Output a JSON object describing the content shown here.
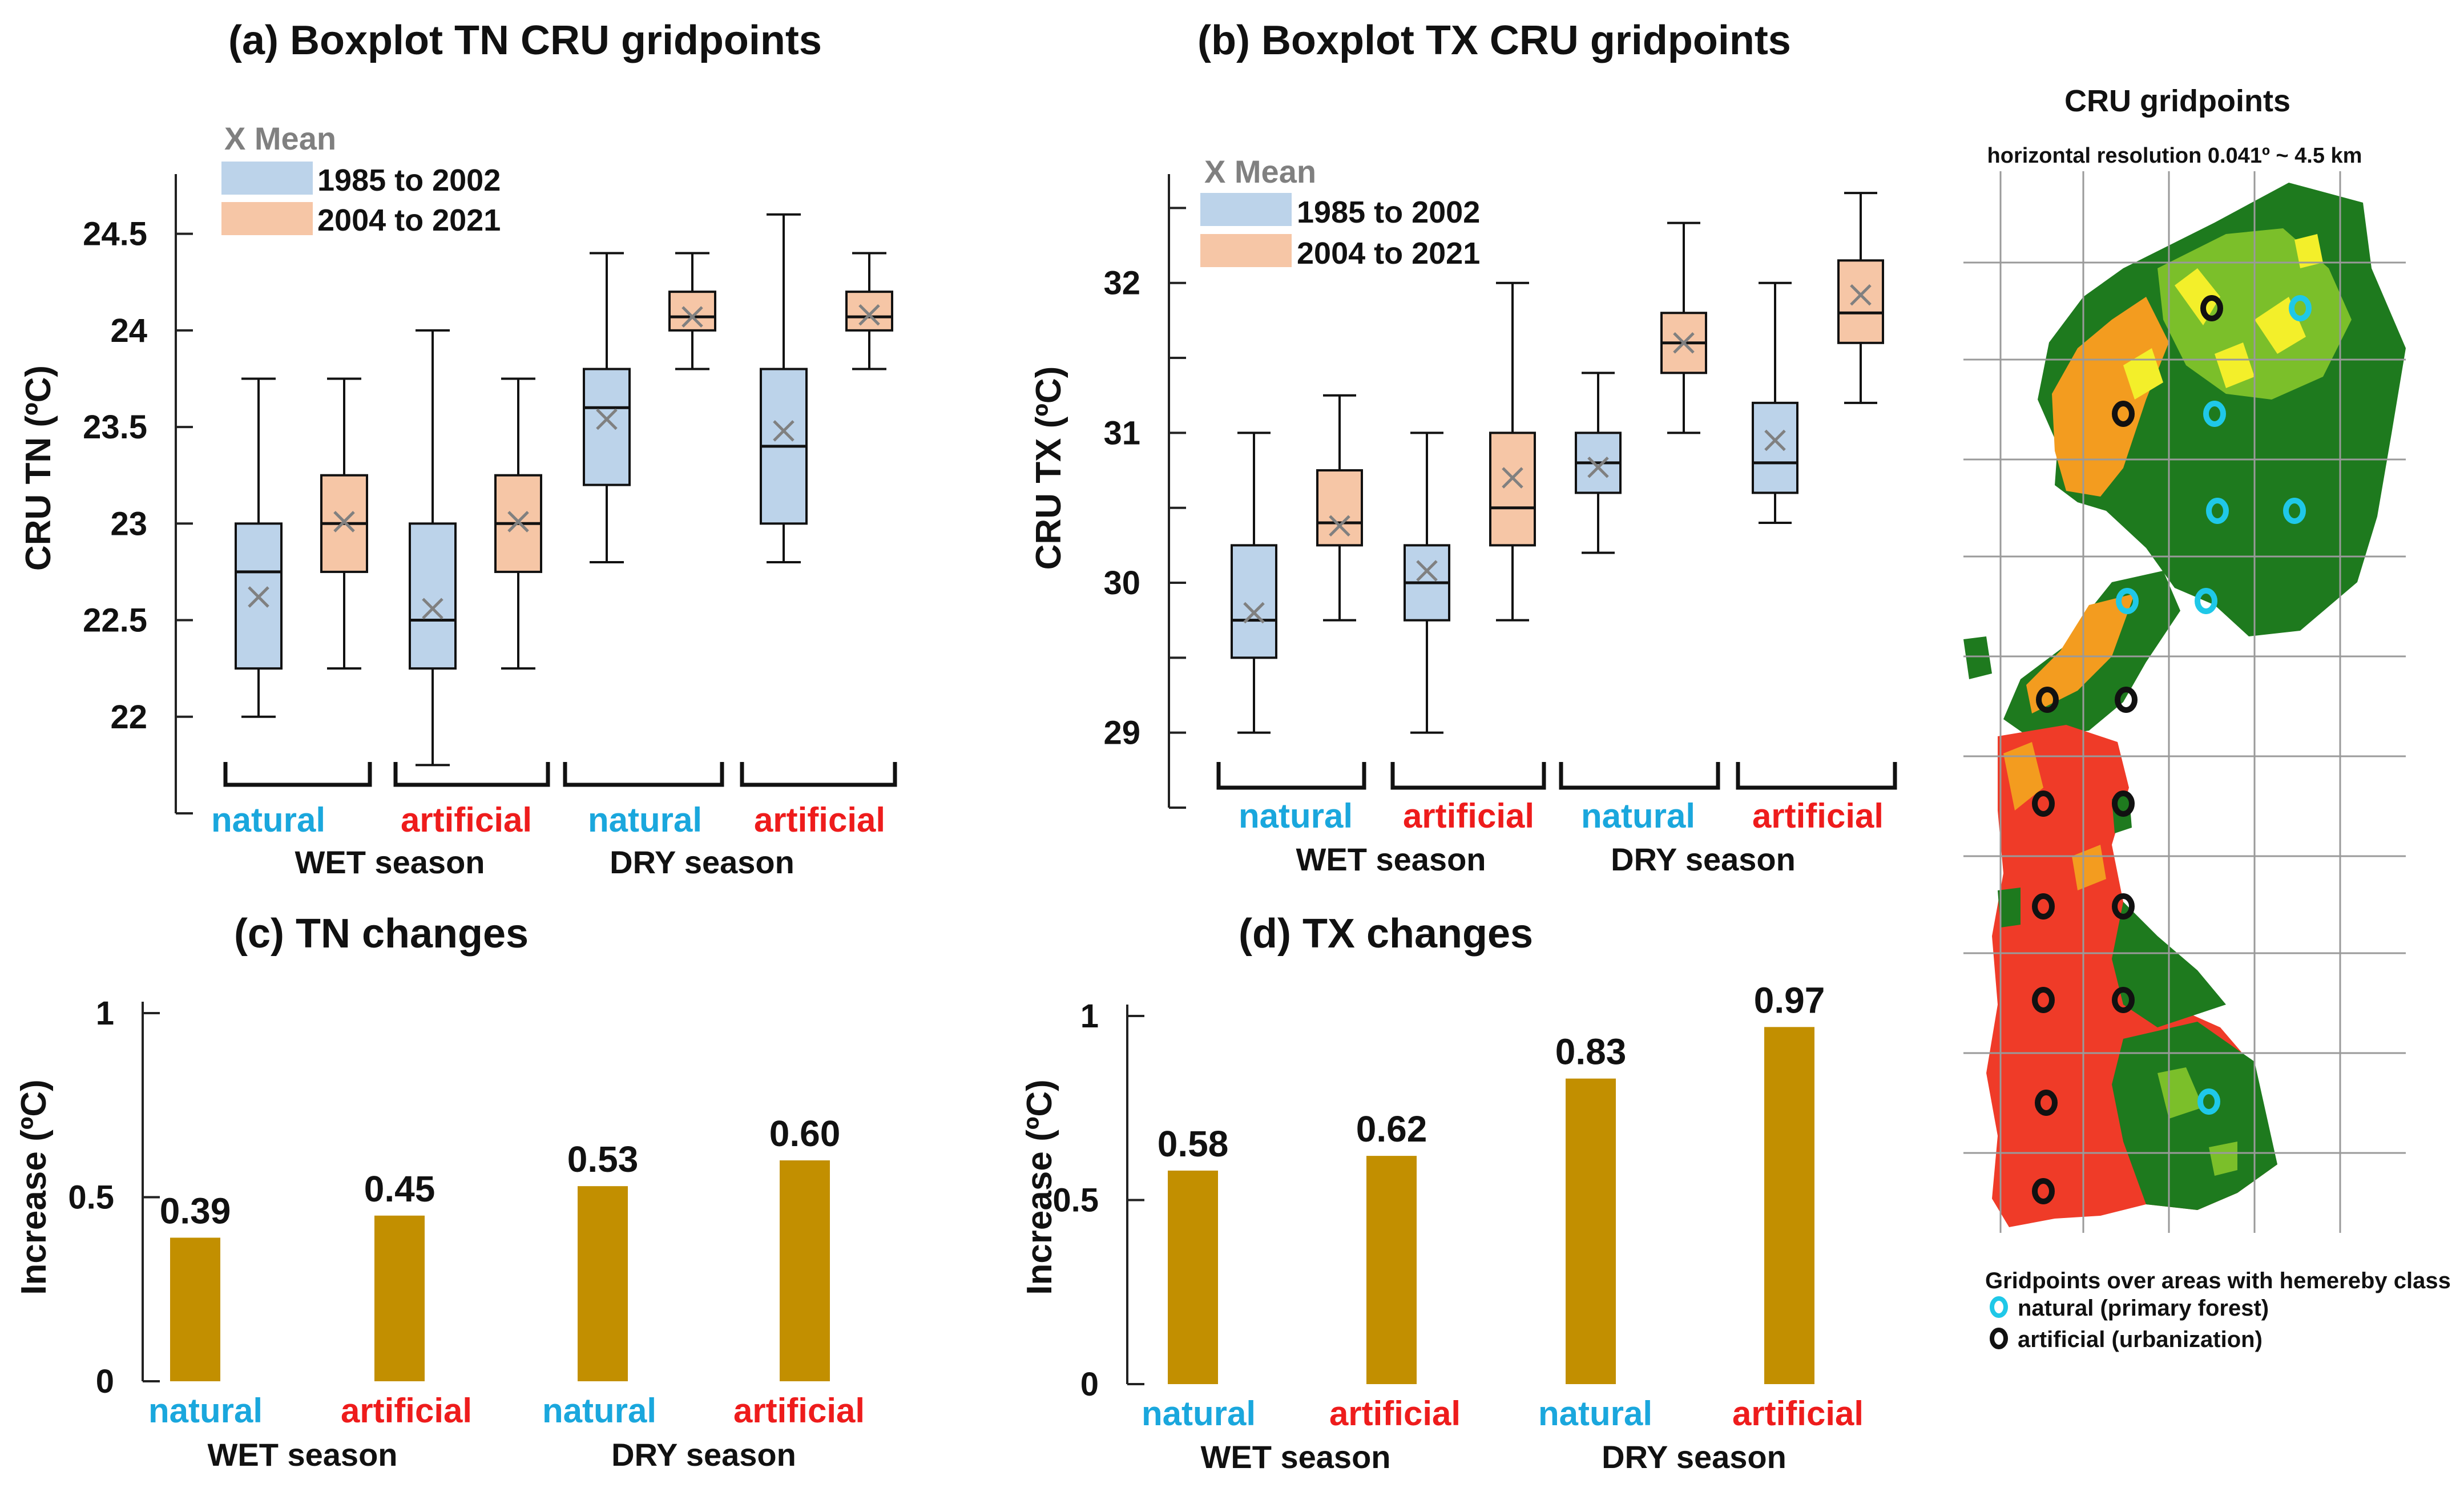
{
  "colors": {
    "natural": "#1aa7dd",
    "artificial": "#ee1c1c",
    "period1_fill": "#bcd3ea",
    "period2_fill": "#f6c6a6",
    "bar": "#c28f00",
    "mean_marker": "#808080",
    "map_dark_green": "#1e7a1e",
    "map_light_green": "#7bbf2a",
    "map_yellow": "#f3ef2a",
    "map_orange": "#f39c1f",
    "map_red": "#ef3b28"
  },
  "legend": {
    "mean_label": "X Mean",
    "period1": "1985 to 2002",
    "period2": "2004 to 2021"
  },
  "groups": {
    "natural": "natural",
    "artificial": "artificial",
    "wet": "WET season",
    "dry": "DRY season"
  },
  "chart_data": [
    {
      "id": "a",
      "type": "box",
      "title": "(a) Boxplot TN  CRU gridpoints",
      "ylabel": "CRU  TN (ºC)",
      "ylim": [
        21.5,
        24.75
      ],
      "yticks": [
        22,
        22.5,
        23,
        23.5,
        24,
        24.5
      ],
      "ytick_labels": [
        "22",
        "22.5",
        "23",
        "23.5",
        "24",
        "24.5"
      ],
      "categories": [
        "natural",
        "artificial",
        "natural",
        "artificial"
      ],
      "seasons": [
        "WET season",
        "DRY season"
      ],
      "series": [
        {
          "name": "1985 to 2002",
          "boxes": [
            {
              "min": 22.0,
              "q1": 22.25,
              "median": 22.75,
              "q3": 23.0,
              "max": 23.75,
              "mean": 22.62
            },
            {
              "min": 21.75,
              "q1": 22.25,
              "median": 22.5,
              "q3": 23.0,
              "max": 24.0,
              "mean": 22.56
            },
            {
              "min": 22.8,
              "q1": 23.2,
              "median": 23.6,
              "q3": 23.8,
              "max": 24.4,
              "mean": 23.54
            },
            {
              "min": 22.8,
              "q1": 23.0,
              "median": 23.4,
              "q3": 23.8,
              "max": 24.6,
              "mean": 23.48
            }
          ]
        },
        {
          "name": "2004 to 2021",
          "boxes": [
            {
              "min": 22.25,
              "q1": 22.75,
              "median": 23.0,
              "q3": 23.25,
              "max": 23.75,
              "mean": 23.01
            },
            {
              "min": 22.25,
              "q1": 22.75,
              "median": 23.0,
              "q3": 23.25,
              "max": 23.75,
              "mean": 23.01
            },
            {
              "min": 23.8,
              "q1": 24.0,
              "median": 24.07,
              "q3": 24.2,
              "max": 24.4,
              "mean": 24.07
            },
            {
              "min": 23.8,
              "q1": 24.0,
              "median": 24.07,
              "q3": 24.2,
              "max": 24.4,
              "mean": 24.08
            }
          ]
        }
      ]
    },
    {
      "id": "b",
      "type": "box",
      "title": "(b) Boxplot TX  CRU gridpoints",
      "ylabel": "CRU  TX (ºC)",
      "ylim": [
        28.5,
        32.65
      ],
      "yticks": [
        29,
        30,
        31,
        32
      ],
      "ytick_labels": [
        "29",
        "30",
        "31",
        "32"
      ],
      "minor_ticks": [
        28.5,
        29.5,
        30.5,
        31.5,
        32.5
      ],
      "categories": [
        "natural",
        "artificial",
        "natural",
        "artificial"
      ],
      "seasons": [
        "WET season",
        "DRY season"
      ],
      "series": [
        {
          "name": "1985 to 2002",
          "boxes": [
            {
              "min": 29.0,
              "q1": 29.5,
              "median": 29.75,
              "q3": 30.25,
              "max": 31.0,
              "mean": 29.8
            },
            {
              "min": 29.0,
              "q1": 29.75,
              "median": 30.0,
              "q3": 30.25,
              "max": 31.0,
              "mean": 30.08
            },
            {
              "min": 30.2,
              "q1": 30.6,
              "median": 30.8,
              "q3": 31.0,
              "max": 31.4,
              "mean": 30.77
            },
            {
              "min": 30.4,
              "q1": 30.6,
              "median": 30.8,
              "q3": 31.2,
              "max": 32.0,
              "mean": 30.95
            }
          ]
        },
        {
          "name": "2004 to 2021",
          "boxes": [
            {
              "min": 29.75,
              "q1": 30.25,
              "median": 30.4,
              "q3": 30.75,
              "max": 31.25,
              "mean": 30.38
            },
            {
              "min": 29.75,
              "q1": 30.25,
              "median": 30.5,
              "q3": 31.0,
              "max": 32.0,
              "mean": 30.7
            },
            {
              "min": 31.0,
              "q1": 31.4,
              "median": 31.6,
              "q3": 31.8,
              "max": 32.4,
              "mean": 31.6
            },
            {
              "min": 31.2,
              "q1": 31.6,
              "median": 31.8,
              "q3": 32.15,
              "max": 32.6,
              "mean": 31.92
            }
          ]
        }
      ]
    },
    {
      "id": "c",
      "type": "bar",
      "title": "(c)  TN changes",
      "ylabel": "Increase (ºC)",
      "ylim": [
        0,
        1
      ],
      "yticks": [
        0,
        0.5,
        1
      ],
      "ytick_labels": [
        "0",
        "0.5",
        "1"
      ],
      "categories": [
        "natural",
        "artificial",
        "natural",
        "artificial"
      ],
      "seasons": [
        "WET season",
        "DRY season"
      ],
      "values": [
        0.39,
        0.45,
        0.53,
        0.6
      ],
      "value_labels": [
        "0.39",
        "0.45",
        "0.53",
        "0.60"
      ]
    },
    {
      "id": "d",
      "type": "bar",
      "title": "(d)  TX changes",
      "ylabel": "Increase (ºC)",
      "ylim": [
        0,
        1
      ],
      "yticks": [
        0,
        0.5,
        1
      ],
      "ytick_labels": [
        "0",
        "0.5",
        "1"
      ],
      "categories": [
        "natural",
        "artificial",
        "natural",
        "artificial"
      ],
      "seasons": [
        "WET season",
        "DRY season"
      ],
      "values": [
        0.58,
        0.62,
        0.83,
        0.97
      ],
      "value_labels": [
        "0.58",
        "0.62",
        "0.83",
        "0.97"
      ]
    }
  ],
  "map": {
    "title": "CRU gridpoints",
    "subtitle": "horizontal resolution 0.041º  ~ 4.5 km",
    "legend_title": "Gridpoints over areas with hemereby class",
    "legend_natural": "natural (primary forest)",
    "legend_artificial": "artificial (urbanization)"
  }
}
